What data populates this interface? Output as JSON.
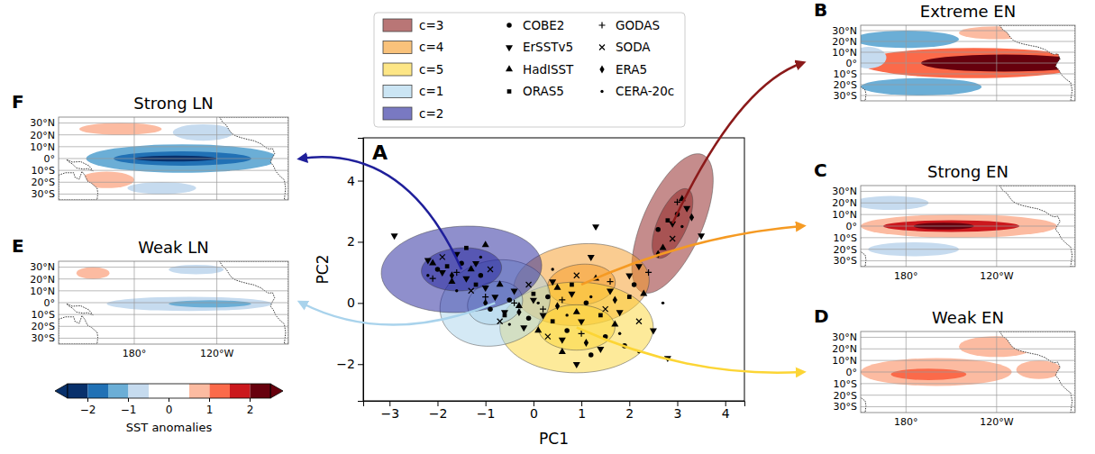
{
  "chart_data": [
    {
      "type": "scatter",
      "letter": "A",
      "x_label": "PC1",
      "y_label": "PC2",
      "xlim": [
        -3.55,
        4.4
      ],
      "ylim": [
        -3.2,
        5.4
      ],
      "xticks": [
        -3,
        -2,
        -1,
        0,
        1,
        2,
        3,
        4
      ],
      "yticks": [
        -2,
        0,
        2,
        4
      ],
      "legend": "top",
      "sigma_levels": [
        1,
        2
      ],
      "components": [
        {
          "name": "c=3",
          "color": "#8b1a1a",
          "mean": [
            2.9,
            2.6
          ],
          "var_x": 0.18,
          "var_y": 1.3,
          "cov_xy": 0.3,
          "panel": "B"
        },
        {
          "name": "c=4",
          "color": "#f59a23",
          "mean": [
            1.0,
            0.6
          ],
          "var_x": 0.5,
          "var_y": 0.45,
          "cov_xy": 0.05,
          "panel": "C"
        },
        {
          "name": "c=5",
          "color": "#fcd535",
          "mean": [
            0.9,
            -0.8
          ],
          "var_x": 0.64,
          "var_y": 0.55,
          "cov_xy": 0.0,
          "panel": "D"
        },
        {
          "name": "c=1",
          "color": "#a9d3ec",
          "mean": [
            -0.8,
            0.0
          ],
          "var_x": 0.33,
          "var_y": 0.5,
          "cov_xy": 0.05,
          "panel": "E"
        },
        {
          "name": "c=2",
          "color": "#1f1f9a",
          "mean": [
            -1.5,
            1.1
          ],
          "var_x": 0.7,
          "var_y": 0.5,
          "cov_xy": 0.05,
          "panel": "F"
        }
      ],
      "series": [
        {
          "name": "COBE2",
          "marker": "circle",
          "x": [
            -2.0,
            -1.5,
            -1.1,
            -0.9,
            -0.5,
            -0.1,
            0.3,
            0.7,
            1.1,
            1.5,
            1.9,
            2.1,
            2.6,
            3.0,
            1.2
          ],
          "values": [
            1.1,
            1.3,
            0.9,
            -0.2,
            0.1,
            -0.5,
            0.2,
            -0.9,
            0.0,
            -1.1,
            -1.4,
            0.6,
            2.4,
            2.9,
            -1.7
          ]
        },
        {
          "name": "ErSSTv5",
          "marker": "triangle-down",
          "x": [
            -2.9,
            -2.2,
            -1.9,
            -1.6,
            -1.4,
            -1.2,
            -1.0,
            -0.8,
            -0.6,
            -0.4,
            -0.2,
            0.0,
            0.2,
            0.4,
            0.6,
            0.8,
            1.0,
            1.2,
            1.4,
            1.6,
            1.8,
            2.0,
            2.2,
            2.5,
            2.8,
            2.9,
            3.2,
            3.5,
            1.3,
            0.9
          ],
          "values": [
            2.2,
            1.4,
            1.0,
            1.6,
            0.8,
            1.3,
            0.5,
            0.2,
            -0.3,
            0.4,
            -0.8,
            0.1,
            -0.4,
            0.7,
            -1.2,
            0.3,
            -0.6,
            1.5,
            -1.5,
            0.4,
            -0.3,
            0.9,
            1.2,
            -0.9,
            -1.8,
            2.6,
            3.1,
            2.2,
            2.5,
            -2.0
          ]
        },
        {
          "name": "HadISST",
          "marker": "triangle-up",
          "x": [
            -2.1,
            -1.7,
            -1.3,
            -0.7,
            -0.3,
            0.1,
            0.5,
            0.9,
            1.3,
            1.7,
            2.3,
            2.7,
            3.1,
            -1.0,
            0.6
          ],
          "values": [
            1.3,
            0.7,
            1.1,
            0.6,
            -0.1,
            -0.9,
            0.5,
            -0.3,
            0.8,
            -0.7,
            0.3,
            1.8,
            3.4,
            1.9,
            -1.6
          ]
        },
        {
          "name": "ORAS5",
          "marker": "square",
          "x": [
            -1.8,
            -1.2,
            -0.6,
            0.0,
            0.4,
            0.8,
            1.4,
            2.0,
            2.8,
            -1.4
          ],
          "values": [
            1.2,
            0.6,
            -0.4,
            0.3,
            -0.6,
            0.6,
            -0.4,
            0.2,
            2.7,
            1.8
          ]
        },
        {
          "name": "GODAS",
          "marker": "plus",
          "x": [
            -1.6,
            -1.0,
            -0.4,
            0.2,
            0.6,
            1.0,
            1.6,
            2.4,
            3.0,
            -2.1
          ],
          "values": [
            1.0,
            0.2,
            0.0,
            -0.2,
            0.1,
            -1.0,
            0.7,
            1.0,
            3.3,
            0.8
          ]
        },
        {
          "name": "SODA",
          "marker": "cross",
          "x": [
            -1.9,
            -1.3,
            -0.7,
            -0.1,
            0.3,
            0.9,
            1.5,
            2.2,
            2.9,
            -0.9
          ],
          "values": [
            1.5,
            0.4,
            -0.6,
            0.6,
            -1.1,
            0.9,
            -0.2,
            -0.6,
            2.1,
            1.1
          ]
        },
        {
          "name": "ERA5",
          "marker": "diamond",
          "x": [
            -1.7,
            -1.0,
            -0.3,
            0.5,
            1.1,
            1.7,
            2.6,
            3.3
          ],
          "values": [
            0.9,
            0.0,
            -0.3,
            -0.1,
            -1.3,
            0.1,
            1.6,
            2.8
          ]
        },
        {
          "name": "CERA-20c",
          "marker": "point",
          "x": [
            -2.2,
            -1.6,
            -1.1,
            -0.5,
            0.1,
            0.7,
            1.2,
            1.8,
            2.2,
            2.7,
            3.1,
            0.4
          ],
          "values": [
            0.9,
            0.4,
            1.5,
            -0.7,
            0.0,
            -0.4,
            0.2,
            -1.0,
            -1.6,
            0.0,
            2.5,
            1.1
          ]
        }
      ]
    },
    {
      "type": "map",
      "letter": "B",
      "title": "Extreme EN",
      "xlim": [
        150,
        292
      ],
      "ylim": [
        -35,
        35
      ],
      "xticks": [
        {
          "value": 180,
          "label": "180°"
        },
        {
          "value": 240,
          "label": "120°W"
        }
      ],
      "yticks": [
        {
          "value": -30,
          "label": "30°S"
        },
        {
          "value": -20,
          "label": "20°S"
        },
        {
          "value": -10,
          "label": "10°S"
        },
        {
          "value": 0,
          "label": "0°"
        },
        {
          "value": 10,
          "label": "10°N"
        },
        {
          "value": 20,
          "label": "20°N"
        },
        {
          "value": 30,
          "label": "30°N"
        }
      ],
      "grid": true,
      "tick_labels": "y",
      "anomalies": [
        {
          "lon": 225,
          "lat": 0,
          "lon_radius": 75,
          "lat_radius": 14,
          "value": 1.2
        },
        {
          "lon": 245,
          "lat": 0,
          "lon_radius": 55,
          "lat_radius": 8,
          "value": 2.3
        },
        {
          "lon": 180,
          "lat": 22,
          "lon_radius": 35,
          "lat_radius": 8,
          "value": -1.2
        },
        {
          "lon": 190,
          "lat": -22,
          "lon_radius": 40,
          "lat_radius": 8,
          "value": -1.2
        },
        {
          "lon": 155,
          "lat": 5,
          "lon_radius": 12,
          "lat_radius": 10,
          "value": -0.8
        },
        {
          "lon": 240,
          "lat": 28,
          "lon_radius": 25,
          "lat_radius": 6,
          "value": 0.8
        }
      ]
    },
    {
      "type": "map",
      "letter": "C",
      "title": "Strong EN",
      "xlim": [
        150,
        292
      ],
      "ylim": [
        -35,
        35
      ],
      "xticks": [
        {
          "value": 180,
          "label": "180°"
        },
        {
          "value": 240,
          "label": "120°W"
        }
      ],
      "yticks": [
        {
          "value": -30,
          "label": "30°S"
        },
        {
          "value": -20,
          "label": "20°S"
        },
        {
          "value": -10,
          "label": "10°S"
        },
        {
          "value": 0,
          "label": "0°"
        },
        {
          "value": 10,
          "label": "10°N"
        },
        {
          "value": 20,
          "label": "20°N"
        },
        {
          "value": 30,
          "label": "30°N"
        }
      ],
      "grid": true,
      "anomalies": [
        {
          "lon": 215,
          "lat": 0,
          "lon_radius": 65,
          "lat_radius": 10,
          "value": 0.8
        },
        {
          "lon": 210,
          "lat": 0,
          "lon_radius": 45,
          "lat_radius": 5,
          "value": 1.7
        },
        {
          "lon": 205,
          "lat": 0,
          "lon_radius": 20,
          "lat_radius": 3,
          "value": 2.2
        },
        {
          "lon": 170,
          "lat": 20,
          "lon_radius": 25,
          "lat_radius": 6,
          "value": -0.8
        },
        {
          "lon": 185,
          "lat": -20,
          "lon_radius": 30,
          "lat_radius": 6,
          "value": -0.8
        }
      ]
    },
    {
      "type": "map",
      "letter": "D",
      "title": "Weak EN",
      "xlim": [
        150,
        292
      ],
      "ylim": [
        -35,
        35
      ],
      "xticks": [
        {
          "value": 180,
          "label": "180°"
        },
        {
          "value": 240,
          "label": "120°W"
        }
      ],
      "yticks": [
        {
          "value": -30,
          "label": "30°S"
        },
        {
          "value": -20,
          "label": "20°S"
        },
        {
          "value": -10,
          "label": "10°S"
        },
        {
          "value": 0,
          "label": "0°"
        },
        {
          "value": 10,
          "label": "10°N"
        },
        {
          "value": 20,
          "label": "20°N"
        },
        {
          "value": 30,
          "label": "30°N"
        }
      ],
      "grid": true,
      "anomalies": [
        {
          "lon": 200,
          "lat": 0,
          "lon_radius": 50,
          "lat_radius": 12,
          "value": 0.8
        },
        {
          "lon": 195,
          "lat": -2,
          "lon_radius": 25,
          "lat_radius": 5,
          "value": 1.2
        },
        {
          "lon": 240,
          "lat": 22,
          "lon_radius": 25,
          "lat_radius": 9,
          "value": 0.8
        },
        {
          "lon": 268,
          "lat": 2,
          "lon_radius": 15,
          "lat_radius": 8,
          "value": 0.8
        }
      ]
    },
    {
      "type": "map",
      "letter": "F",
      "title": "Strong LN",
      "xlim": [
        125,
        292
      ],
      "ylim": [
        -35,
        35
      ],
      "xticks": [
        {
          "value": 180,
          "label": "180°"
        },
        {
          "value": 240,
          "label": "120°W"
        }
      ],
      "yticks": [
        {
          "value": -30,
          "label": "30°S"
        },
        {
          "value": -20,
          "label": "20°S"
        },
        {
          "value": -10,
          "label": "10°S"
        },
        {
          "value": 0,
          "label": "0°"
        },
        {
          "value": 10,
          "label": "10°N"
        },
        {
          "value": 20,
          "label": "20°N"
        },
        {
          "value": 30,
          "label": "30°N"
        }
      ],
      "grid": true,
      "tick_labels": "y",
      "anomalies": [
        {
          "lon": 215,
          "lat": 0,
          "lon_radius": 70,
          "lat_radius": 12,
          "value": -1.2
        },
        {
          "lon": 215,
          "lat": 0,
          "lon_radius": 50,
          "lat_radius": 6,
          "value": -1.7
        },
        {
          "lon": 210,
          "lat": 0,
          "lon_radius": 30,
          "lat_radius": 2.5,
          "value": -2.3
        },
        {
          "lon": 170,
          "lat": 25,
          "lon_radius": 30,
          "lat_radius": 5,
          "value": 0.8
        },
        {
          "lon": 160,
          "lat": -18,
          "lon_radius": 20,
          "lat_radius": 7,
          "value": 0.8
        },
        {
          "lon": 230,
          "lat": 22,
          "lon_radius": 22,
          "lat_radius": 7,
          "value": -0.8
        },
        {
          "lon": 200,
          "lat": -25,
          "lon_radius": 25,
          "lat_radius": 5,
          "value": -0.8
        }
      ]
    },
    {
      "type": "map",
      "letter": "E",
      "title": "Weak LN",
      "xlim": [
        125,
        292
      ],
      "ylim": [
        -35,
        35
      ],
      "xticks": [
        {
          "value": 180,
          "label": "180°"
        },
        {
          "value": 240,
          "label": "120°W"
        }
      ],
      "yticks": [
        {
          "value": -30,
          "label": "30°S"
        },
        {
          "value": -20,
          "label": "20°S"
        },
        {
          "value": -10,
          "label": "10°S"
        },
        {
          "value": 0,
          "label": "0°"
        },
        {
          "value": 10,
          "label": "10°N"
        },
        {
          "value": 20,
          "label": "20°N"
        },
        {
          "value": 30,
          "label": "30°N"
        }
      ],
      "grid": true,
      "anomalies": [
        {
          "lon": 220,
          "lat": -1,
          "lon_radius": 60,
          "lat_radius": 6,
          "value": -0.8
        },
        {
          "lon": 235,
          "lat": -1,
          "lon_radius": 30,
          "lat_radius": 3,
          "value": -1.2
        },
        {
          "lon": 150,
          "lat": 25,
          "lon_radius": 12,
          "lat_radius": 5,
          "value": 0.8
        },
        {
          "lon": 225,
          "lat": 28,
          "lon_radius": 20,
          "lat_radius": 4,
          "value": -0.8
        }
      ]
    },
    {
      "type": "colorbar",
      "label": "SST anomalies",
      "range": [
        -2.5,
        2.5
      ],
      "ticks": [
        -2,
        -1,
        0,
        1,
        2
      ],
      "boundaries": [
        -2.5,
        -2,
        -1.5,
        -1,
        -0.5,
        0.5,
        1,
        1.5,
        2,
        2.5
      ],
      "colors": [
        "#08306b",
        "#2171b5",
        "#6baed6",
        "#c6dbef",
        "#ffffff",
        "#fcbba1",
        "#fb6a4a",
        "#cb181d",
        "#67000d"
      ]
    }
  ]
}
